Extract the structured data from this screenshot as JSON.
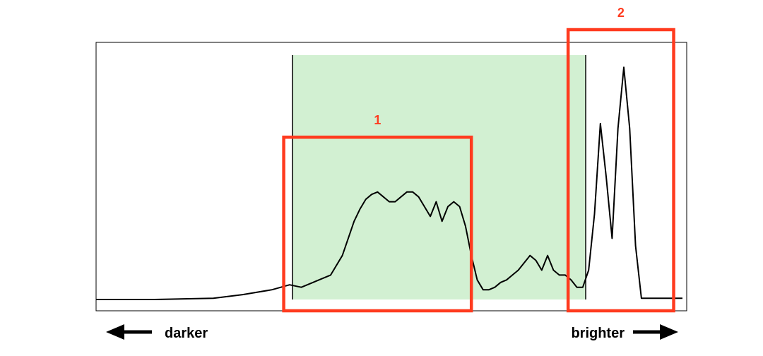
{
  "chart_data": {
    "type": "line",
    "title": "",
    "xlabel": "",
    "ylabel": "",
    "xlim": [
      0,
      100
    ],
    "ylim": [
      0,
      100
    ],
    "grid": false,
    "x": [
      0,
      10,
      20,
      25,
      30,
      33,
      35,
      37,
      38,
      40,
      42,
      44,
      45,
      46,
      47,
      48,
      49,
      50,
      51,
      52,
      53,
      54,
      55,
      56,
      57,
      58,
      59,
      60,
      61,
      62,
      63,
      64,
      65,
      66,
      67,
      68,
      69,
      70,
      71,
      72,
      73,
      74,
      75,
      76,
      77,
      78,
      79,
      80,
      81,
      82,
      83,
      84,
      85,
      86,
      87,
      88,
      89,
      90,
      91,
      92,
      93,
      94,
      95,
      96,
      97,
      98,
      100
    ],
    "series": [
      {
        "values": [
          0,
          0,
          0.5,
          2,
          4,
          6,
          5,
          7,
          8,
          10,
          18,
          32,
          37,
          41,
          43,
          44,
          42,
          40,
          40,
          42,
          44,
          44,
          42,
          38,
          34,
          40,
          32,
          38,
          40,
          38,
          30,
          18,
          8,
          4,
          4,
          5,
          7,
          8,
          10,
          12,
          15,
          18,
          16,
          12,
          18,
          12,
          10,
          10,
          8,
          5,
          5,
          12,
          35,
          72,
          50,
          25,
          70,
          95,
          70,
          22,
          0.5,
          0.5,
          0.5,
          0.5,
          0.5,
          0.5,
          0.5
        ]
      }
    ],
    "highlight_band": {
      "x_start": 33.5,
      "x_end": 83.5,
      "color": "#d2f0d2"
    },
    "annotations": [
      {
        "text": "1",
        "x_start": 32,
        "x_end": 64,
        "y_top": 56,
        "color": "#ff3b1f"
      },
      {
        "text": "2",
        "x_start": 80.5,
        "x_end": 98.5,
        "y_top": 100,
        "color": "#ff3b1f"
      }
    ],
    "colors": {
      "line": "#000000",
      "annotation": "#ff3b1f",
      "band": "#d2f0d2"
    }
  },
  "axis_hints": {
    "left_label": "darker",
    "right_label": "brighter"
  }
}
